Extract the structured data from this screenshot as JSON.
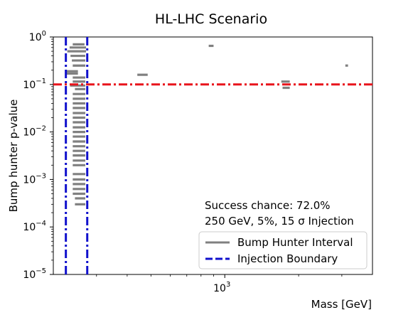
{
  "chart_data": {
    "type": "scatter",
    "title": "HL-LHC Scenario",
    "xlabel": "Mass [GeV]",
    "ylabel": "Bump hunter p-value",
    "x_scale": "log",
    "y_scale": "log",
    "xlim": [
      200,
      4000
    ],
    "ylim": [
      1e-05,
      1
    ],
    "x_ticks": [
      {
        "value": 1000,
        "base": "10",
        "exp": "3"
      }
    ],
    "y_ticks": [
      {
        "value": 1,
        "base": "10",
        "exp": "0"
      },
      {
        "value": 0.1,
        "base": "10",
        "exp": "−1"
      },
      {
        "value": 0.01,
        "base": "10",
        "exp": "−2"
      },
      {
        "value": 0.001,
        "base": "10",
        "exp": "−3"
      },
      {
        "value": 0.0001,
        "base": "10",
        "exp": "−4"
      },
      {
        "value": 1e-05,
        "base": "10",
        "exp": "−5"
      }
    ],
    "grid": false,
    "threshold": {
      "y": 0.1,
      "color": "#e8141c"
    },
    "injection_boundaries": {
      "x": [
        225,
        275
      ],
      "color": "#1010cc"
    },
    "intervals": [
      {
        "x0": 228,
        "x1": 272,
        "y": 0.5
      },
      {
        "x0": 233,
        "x1": 272,
        "y": 0.6
      },
      {
        "x0": 240,
        "x1": 268,
        "y": 0.7
      },
      {
        "x0": 235,
        "x1": 270,
        "y": 0.4
      },
      {
        "x0": 238,
        "x1": 270,
        "y": 0.32
      },
      {
        "x0": 240,
        "x1": 270,
        "y": 0.25
      },
      {
        "x0": 226,
        "x1": 252,
        "y": 0.19
      },
      {
        "x0": 226,
        "x1": 252,
        "y": 0.17
      },
      {
        "x0": 240,
        "x1": 270,
        "y": 0.14
      },
      {
        "x0": 240,
        "x1": 270,
        "y": 0.115
      },
      {
        "x0": 234,
        "x1": 270,
        "y": 0.095
      },
      {
        "x0": 245,
        "x1": 270,
        "y": 0.08
      },
      {
        "x0": 240,
        "x1": 270,
        "y": 0.063
      },
      {
        "x0": 240,
        "x1": 270,
        "y": 0.05
      },
      {
        "x0": 240,
        "x1": 270,
        "y": 0.04
      },
      {
        "x0": 240,
        "x1": 270,
        "y": 0.032
      },
      {
        "x0": 240,
        "x1": 270,
        "y": 0.025
      },
      {
        "x0": 240,
        "x1": 270,
        "y": 0.02
      },
      {
        "x0": 240,
        "x1": 270,
        "y": 0.016
      },
      {
        "x0": 240,
        "x1": 270,
        "y": 0.0125
      },
      {
        "x0": 240,
        "x1": 270,
        "y": 0.01
      },
      {
        "x0": 240,
        "x1": 270,
        "y": 0.008
      },
      {
        "x0": 240,
        "x1": 270,
        "y": 0.0063
      },
      {
        "x0": 240,
        "x1": 270,
        "y": 0.005
      },
      {
        "x0": 240,
        "x1": 270,
        "y": 0.004
      },
      {
        "x0": 240,
        "x1": 270,
        "y": 0.0032
      },
      {
        "x0": 240,
        "x1": 270,
        "y": 0.0025
      },
      {
        "x0": 240,
        "x1": 270,
        "y": 0.002
      },
      {
        "x0": 240,
        "x1": 270,
        "y": 0.0013
      },
      {
        "x0": 240,
        "x1": 270,
        "y": 0.001
      },
      {
        "x0": 240,
        "x1": 270,
        "y": 0.0008
      },
      {
        "x0": 240,
        "x1": 270,
        "y": 0.00063
      },
      {
        "x0": 240,
        "x1": 270,
        "y": 0.0005
      },
      {
        "x0": 245,
        "x1": 270,
        "y": 0.0004
      },
      {
        "x0": 245,
        "x1": 270,
        "y": 0.0003
      },
      {
        "x0": 440,
        "x1": 485,
        "y": 0.16
      },
      {
        "x0": 860,
        "x1": 900,
        "y": 0.65
      },
      {
        "x0": 1700,
        "x1": 1840,
        "y": 0.115
      },
      {
        "x0": 1720,
        "x1": 1840,
        "y": 0.085
      },
      {
        "x0": 3100,
        "x1": 3180,
        "y": 0.25
      }
    ],
    "annotation": [
      "Success chance: 72.0%",
      "250 GeV, 5%, 15 σ Injection"
    ],
    "legend": {
      "position": "lower-right",
      "entries": [
        {
          "label": "Bump Hunter Interval",
          "color": "#808080",
          "style": "solid"
        },
        {
          "label": "Injection Boundary",
          "color": "#1010cc",
          "style": "dashed"
        }
      ]
    }
  }
}
